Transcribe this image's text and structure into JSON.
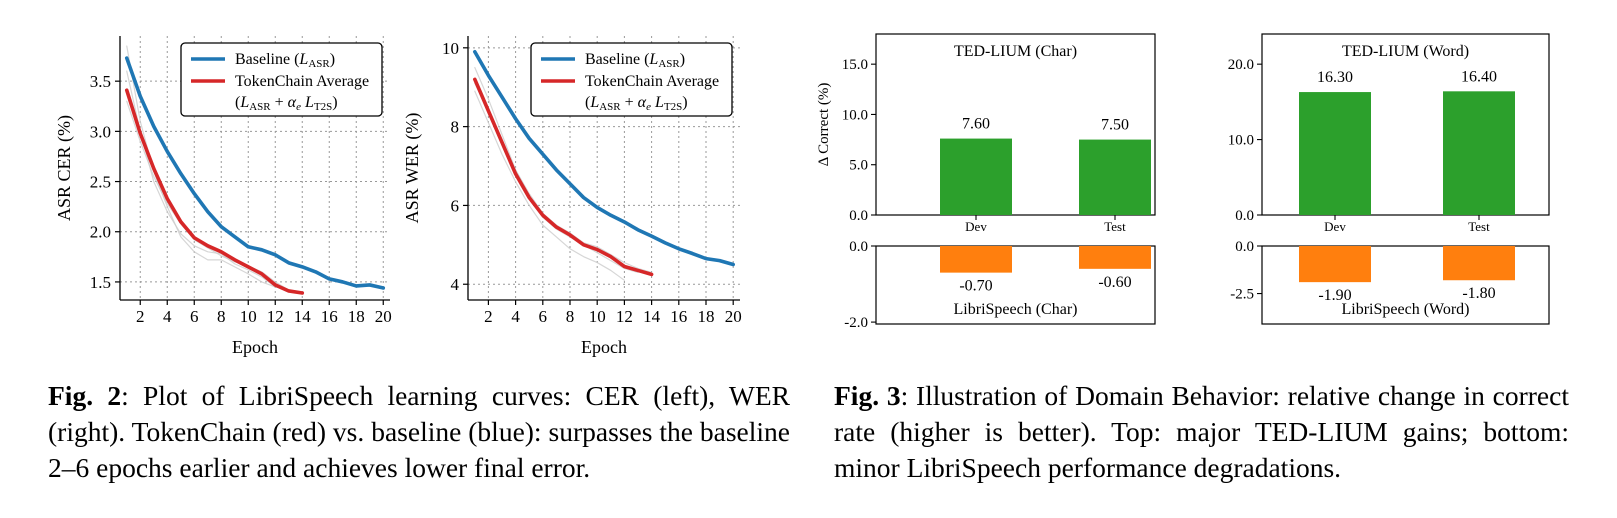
{
  "figure2": {
    "label": "Fig. 2",
    "caption": ": Plot of LibriSpeech learning curves: CER (left), WER (right). TokenChain (red) vs. baseline (blue): surpasses the baseline 2–6 epochs earlier and achieves lower final error."
  },
  "figure3": {
    "label": "Fig. 3",
    "caption": ": Illustration of Domain Behavior: relative change in correct rate (higher is better). Top: major TED-LIUM gains; bottom: minor LibriSpeech performance degradations."
  },
  "colors": {
    "baseline": "#1f77b4",
    "tokenchain": "#d62728",
    "gain": "#2ca02c",
    "loss": "#ff7f0e",
    "light": "#cccccc"
  },
  "chart_data": [
    {
      "type": "line",
      "xlabel": "Epoch",
      "ylabel": "ASR CER (%)",
      "xlim": [
        0.5,
        20.5
      ],
      "ylim": [
        1.32,
        3.95
      ],
      "xticks": [
        2,
        4,
        6,
        8,
        10,
        12,
        14,
        16,
        18,
        20
      ],
      "yticks": [
        1.5,
        2.0,
        2.5,
        3.0,
        3.5
      ],
      "grid": true,
      "legend_position": "top-right",
      "legend": [
        "Baseline (L_ASR)",
        "TokenChain Average",
        "(L_ASR + α_e L_T2S)"
      ],
      "series": [
        {
          "name": "Baseline (L_ASR)",
          "color": "baseline",
          "x": [
            1,
            2,
            3,
            4,
            5,
            6,
            7,
            8,
            9,
            10,
            11,
            12,
            13,
            14,
            15,
            16,
            17,
            18,
            19,
            20
          ],
          "y": [
            3.73,
            3.35,
            3.05,
            2.8,
            2.58,
            2.38,
            2.2,
            2.05,
            1.95,
            1.85,
            1.82,
            1.77,
            1.69,
            1.65,
            1.6,
            1.53,
            1.5,
            1.46,
            1.47,
            1.44
          ]
        },
        {
          "name": "TokenChain Average",
          "color": "tokenchain",
          "x": [
            1,
            2,
            3,
            4,
            5,
            6,
            7,
            8,
            9,
            10,
            11,
            12,
            13,
            14
          ],
          "y": [
            3.41,
            2.98,
            2.63,
            2.33,
            2.1,
            1.94,
            1.86,
            1.8,
            1.72,
            1.65,
            1.58,
            1.47,
            1.41,
            1.39
          ]
        },
        {
          "color": "light",
          "x": [
            1,
            2,
            3,
            4,
            5,
            6,
            7,
            8,
            9,
            10,
            11,
            12,
            13
          ],
          "y": [
            3.85,
            3.1,
            2.6,
            2.25,
            1.95,
            1.8,
            1.72,
            1.72,
            1.65,
            1.58,
            1.5,
            1.45,
            1.42
          ]
        },
        {
          "color": "light",
          "x": [
            1,
            2,
            3,
            4,
            5,
            6,
            7,
            8,
            9,
            10,
            11,
            12,
            13,
            14
          ],
          "y": [
            3.3,
            2.9,
            2.55,
            2.28,
            2.08,
            1.92,
            1.84,
            1.76,
            1.7,
            1.66,
            1.6,
            1.5,
            1.42,
            1.4
          ]
        },
        {
          "color": "light",
          "x": [
            1,
            2,
            3,
            4,
            5,
            6,
            7,
            8,
            9,
            10,
            11,
            12
          ],
          "y": [
            3.6,
            3.0,
            2.5,
            2.2,
            1.98,
            1.86,
            1.8,
            1.78,
            1.68,
            1.62,
            1.55,
            1.45
          ]
        }
      ]
    },
    {
      "type": "line",
      "xlabel": "Epoch",
      "ylabel": "ASR WER (%)",
      "xlim": [
        0.5,
        20.5
      ],
      "ylim": [
        3.6,
        10.3
      ],
      "xticks": [
        2,
        4,
        6,
        8,
        10,
        12,
        14,
        16,
        18,
        20
      ],
      "yticks": [
        4,
        6,
        8,
        10
      ],
      "grid": true,
      "legend_position": "top-right",
      "legend": [
        "Baseline (L_ASR)",
        "TokenChain Average",
        "(L_ASR + α_e L_T2S)"
      ],
      "series": [
        {
          "name": "Baseline (L_ASR)",
          "color": "baseline",
          "x": [
            1,
            2,
            3,
            4,
            5,
            6,
            7,
            8,
            9,
            10,
            11,
            12,
            13,
            14,
            15,
            16,
            17,
            18,
            19,
            20
          ],
          "y": [
            9.9,
            9.3,
            8.75,
            8.2,
            7.7,
            7.3,
            6.9,
            6.55,
            6.2,
            5.95,
            5.75,
            5.58,
            5.38,
            5.22,
            5.05,
            4.9,
            4.78,
            4.65,
            4.6,
            4.5
          ]
        },
        {
          "name": "TokenChain Average",
          "color": "tokenchain",
          "x": [
            1,
            2,
            3,
            4,
            5,
            6,
            7,
            8,
            9,
            10,
            11,
            12,
            13,
            14
          ],
          "y": [
            9.2,
            8.4,
            7.6,
            6.8,
            6.2,
            5.75,
            5.45,
            5.25,
            5.0,
            4.88,
            4.7,
            4.45,
            4.35,
            4.25
          ]
        },
        {
          "color": "light",
          "x": [
            1,
            2,
            3,
            4,
            5,
            6,
            7,
            8,
            9,
            10,
            11,
            12,
            13
          ],
          "y": [
            9.5,
            8.7,
            7.8,
            6.9,
            6.25,
            5.7,
            5.4,
            5.2,
            5.0,
            4.8,
            4.6,
            4.4,
            4.3
          ]
        },
        {
          "color": "light",
          "x": [
            1,
            2,
            3,
            4,
            5,
            6,
            7,
            8,
            9,
            10,
            11,
            12
          ],
          "y": [
            8.9,
            8.1,
            7.3,
            6.6,
            6.0,
            5.5,
            5.2,
            4.9,
            4.7,
            4.55,
            4.35,
            4.1
          ]
        },
        {
          "color": "light",
          "x": [
            1,
            2,
            3,
            4,
            5,
            6,
            7,
            8,
            9,
            10,
            11,
            12,
            13,
            14
          ],
          "y": [
            9.1,
            8.4,
            7.6,
            6.9,
            6.3,
            5.8,
            5.5,
            5.3,
            5.05,
            4.95,
            4.75,
            4.55,
            4.4,
            4.3
          ]
        }
      ]
    },
    {
      "type": "bar",
      "title": "TED-LIUM (Char)",
      "bottom_title": "LibriSpeech (Char)",
      "ylabel": "Δ Correct (%)",
      "categories": [
        "Dev",
        "Test"
      ],
      "top": {
        "values": [
          7.6,
          7.5
        ],
        "labels": [
          "7.60",
          "7.50"
        ],
        "ylim": [
          0,
          18
        ],
        "yticks": [
          "0.0",
          "5.0",
          "10.0",
          "15.0"
        ],
        "ytick_values": [
          0,
          5,
          10,
          15
        ]
      },
      "bottom": {
        "values": [
          -0.7,
          -0.6
        ],
        "labels": [
          "-0.70",
          "-0.60"
        ],
        "ylim": [
          -2.05,
          0
        ],
        "yticks": [
          "0.0",
          "-2.0"
        ],
        "ytick_values": [
          0,
          -2
        ]
      }
    },
    {
      "type": "bar",
      "title": "TED-LIUM (Word)",
      "bottom_title": "LibriSpeech (Word)",
      "categories": [
        "Dev",
        "Test"
      ],
      "top": {
        "values": [
          16.3,
          16.4
        ],
        "labels": [
          "16.30",
          "16.40"
        ],
        "ylim": [
          0,
          24
        ],
        "yticks": [
          "0.0",
          "10.0",
          "20.0"
        ],
        "ytick_values": [
          0,
          10,
          20
        ]
      },
      "bottom": {
        "values": [
          -1.9,
          -1.8
        ],
        "labels": [
          "-1.90",
          "-1.80"
        ],
        "ylim": [
          -4.1,
          0
        ],
        "yticks": [
          "0.0",
          "-2.5"
        ],
        "ytick_values": [
          0,
          -2.5
        ]
      }
    }
  ]
}
